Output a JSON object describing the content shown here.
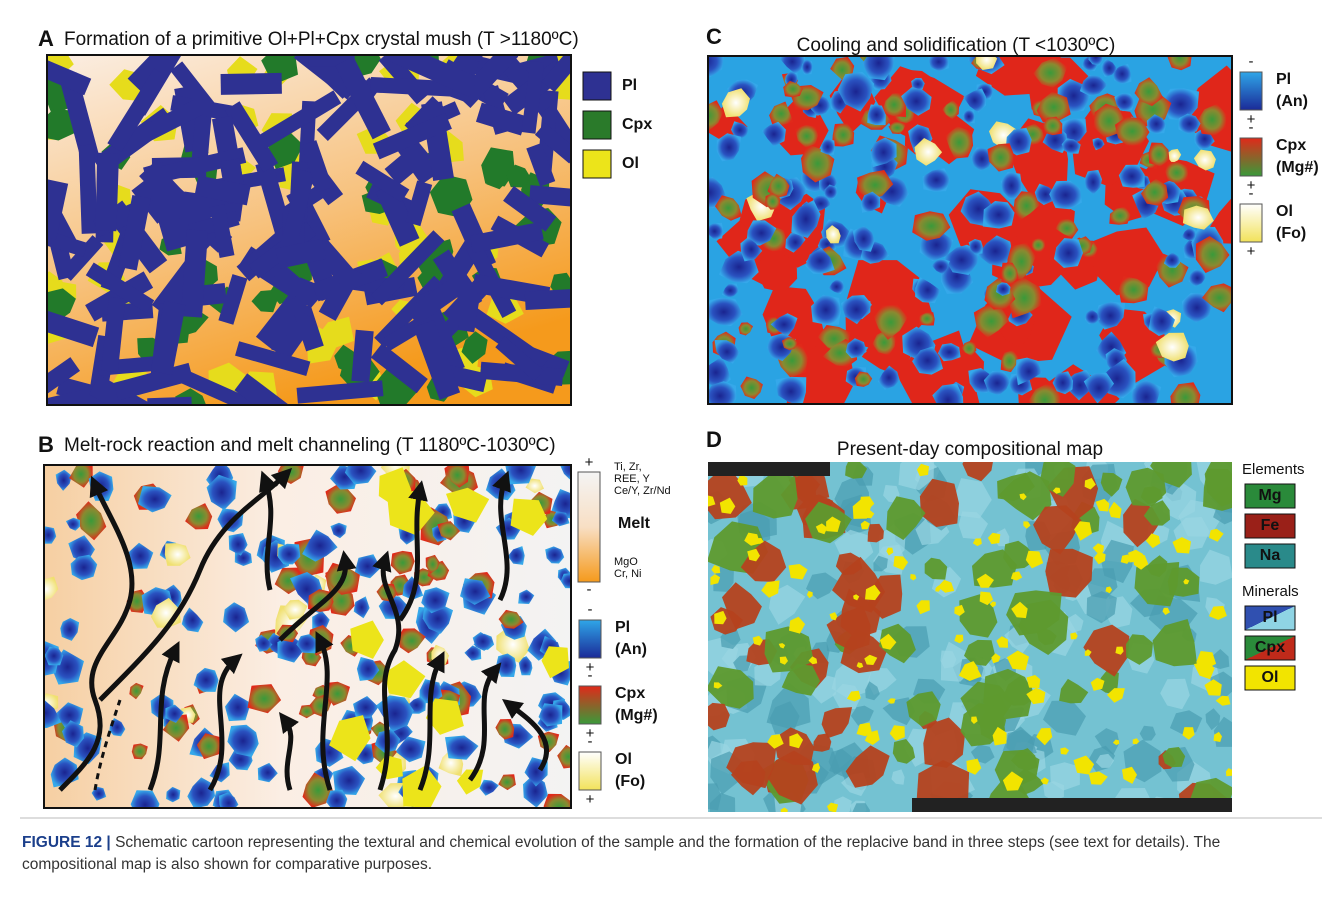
{
  "panels": [
    {
      "letter": "A",
      "title": "Formation of a primitive Ol+Pl+Cpx crystal mush (T >1180ºC)",
      "legend": [
        "Pl",
        "Cpx",
        "Ol"
      ]
    },
    {
      "letter": "B",
      "title": "Melt-rock reaction and melt channeling (T 1180ºC-1030ºC)",
      "melt_scale": {
        "top_sign": "+",
        "top_labels": [
          "Ti, Zr,",
          "REE, Y",
          "Ce/Y, Zr/Nd"
        ],
        "label": "Melt",
        "bottom_labels": [
          "MgO",
          "Cr, Ni"
        ],
        "bottom_sign": "-"
      },
      "legend": [
        {
          "sign_top": "-",
          "name": "Pl",
          "sub": "(An)",
          "sign_bottom": "+"
        },
        {
          "sign_top": "-",
          "name": "Cpx",
          "sub": "(Mg#)",
          "sign_bottom": "+"
        },
        {
          "sign_top": "-",
          "name": "Ol",
          "sub": "(Fo)",
          "sign_bottom": "+"
        }
      ]
    },
    {
      "letter": "C",
      "title": "Cooling and solidification (T <1030ºC)",
      "legend": [
        {
          "sign_top": "-",
          "name": "Pl",
          "sub": "(An)",
          "sign_bottom": "+"
        },
        {
          "sign_top": "-",
          "name": "Cpx",
          "sub": "(Mg#)",
          "sign_bottom": "+"
        },
        {
          "sign_top": "-",
          "name": "Ol",
          "sub": "(Fo)",
          "sign_bottom": "+"
        }
      ]
    },
    {
      "letter": "D",
      "title": "Present-day compositional map",
      "elements_title": "Elements",
      "elements": [
        "Mg",
        "Fe",
        "Na"
      ],
      "minerals_title": "Minerals",
      "minerals": [
        "Pl",
        "Cpx",
        "Ol"
      ]
    }
  ],
  "caption": {
    "label": "FIGURE 12 |",
    "text": "Schematic cartoon representing the textural and chemical evolution of the sample and the formation of the replacive band in three steps (see text for details). The compositional map is also shown for comparative purposes."
  }
}
